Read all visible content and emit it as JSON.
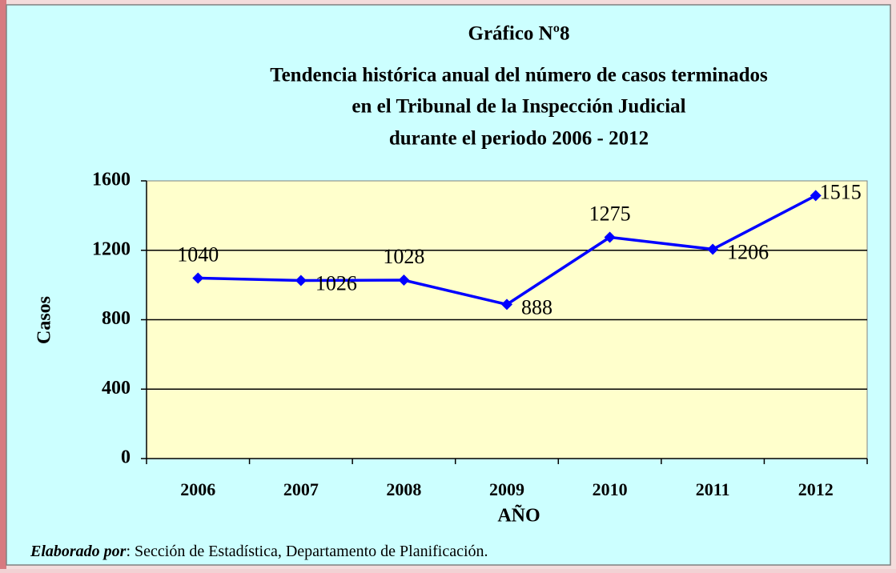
{
  "chart_data": {
    "type": "line",
    "title": [
      "Gráfico Nº8",
      "Tendencia histórica anual del número de casos terminados",
      "en el Tribunal de la Inspección Judicial",
      "durante el periodo 2006 - 2012"
    ],
    "x_label": "AÑO",
    "y_label": "Casos",
    "categories": [
      "2006",
      "2007",
      "2008",
      "2009",
      "2010",
      "2011",
      "2012"
    ],
    "series": [
      {
        "name": "Casos",
        "color": "#0000ff",
        "values": [
          1040,
          1026,
          1028,
          888,
          1275,
          1206,
          1515
        ]
      }
    ],
    "ylim": [
      0,
      1600
    ],
    "yticks": [
      0,
      400,
      800,
      1200,
      1600
    ],
    "grid": true,
    "source": {
      "label": "Elaborado por",
      "text": ": Sección de Estadística, Departamento de Planificación."
    }
  }
}
